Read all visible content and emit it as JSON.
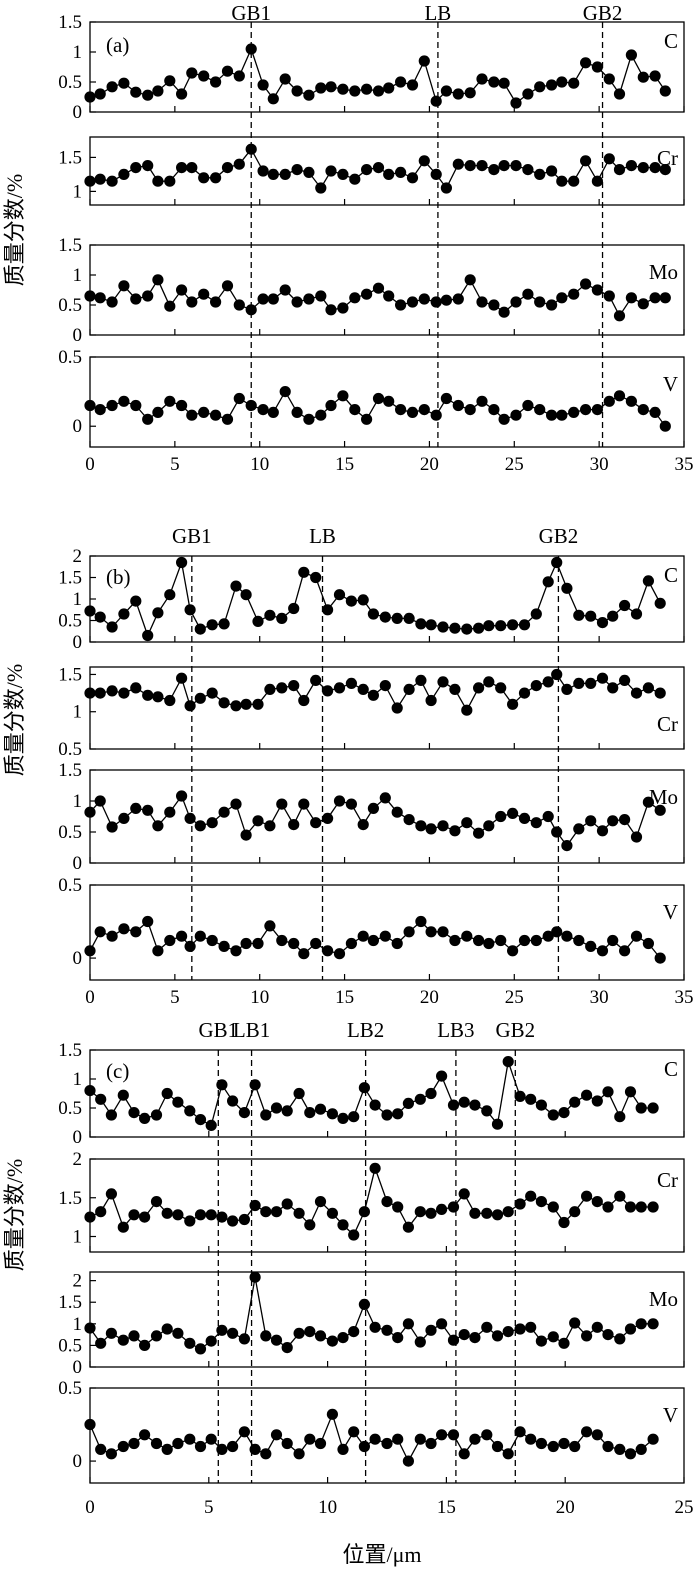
{
  "figure": {
    "ylabel": "质量分数/%",
    "xlabel": "位置/μm"
  },
  "chart_data": [
    {
      "type": "line",
      "panel": "(a)",
      "xlim": [
        0,
        35
      ],
      "xticks": [
        0,
        5,
        10,
        15,
        20,
        25,
        30,
        35
      ],
      "boundaries": [
        {
          "label": "GB1",
          "x": 9.5
        },
        {
          "label": "LB",
          "x": 20.5
        },
        {
          "label": "GB2",
          "x": 30.2
        }
      ],
      "x": [
        0,
        0.6,
        1.3,
        2,
        2.7,
        3.4,
        4,
        4.7,
        5.4,
        6,
        6.7,
        7.4,
        8.1,
        8.8,
        9.5,
        10.2,
        10.8,
        11.5,
        12.2,
        12.9,
        13.6,
        14.2,
        14.9,
        15.6,
        16.3,
        17,
        17.6,
        18.3,
        19,
        19.7,
        20.4,
        21,
        21.7,
        22.4,
        23.1,
        23.8,
        24.4,
        25.1,
        25.8,
        26.5,
        27.2,
        27.8,
        28.5,
        29.2,
        29.9,
        30.6,
        31.2,
        31.9,
        32.6,
        33.3,
        33.9
      ],
      "series": [
        {
          "name": "C",
          "ylim": [
            0,
            1.5
          ],
          "yticks": [
            0,
            0.5,
            1.0,
            1.5
          ],
          "values": [
            0.25,
            0.3,
            0.42,
            0.48,
            0.33,
            0.28,
            0.35,
            0.52,
            0.3,
            0.65,
            0.6,
            0.5,
            0.68,
            0.6,
            1.05,
            0.45,
            0.22,
            0.55,
            0.35,
            0.28,
            0.4,
            0.42,
            0.38,
            0.35,
            0.38,
            0.35,
            0.4,
            0.5,
            0.45,
            0.85,
            0.18,
            0.35,
            0.3,
            0.32,
            0.55,
            0.5,
            0.48,
            0.15,
            0.3,
            0.42,
            0.45,
            0.5,
            0.48,
            0.82,
            0.75,
            0.55,
            0.3,
            0.95,
            0.58,
            0.6,
            0.35
          ]
        },
        {
          "name": "Cr",
          "ylim": [
            0.8,
            1.8
          ],
          "yticks": [
            1.0,
            1.5
          ],
          "values": [
            1.15,
            1.18,
            1.15,
            1.25,
            1.35,
            1.38,
            1.15,
            1.15,
            1.35,
            1.35,
            1.2,
            1.2,
            1.35,
            1.4,
            1.62,
            1.3,
            1.25,
            1.25,
            1.32,
            1.28,
            1.05,
            1.3,
            1.25,
            1.18,
            1.32,
            1.35,
            1.25,
            1.28,
            1.2,
            1.45,
            1.25,
            1.05,
            1.4,
            1.38,
            1.38,
            1.32,
            1.38,
            1.38,
            1.32,
            1.25,
            1.3,
            1.15,
            1.15,
            1.45,
            1.15,
            1.48,
            1.32,
            1.38,
            1.35,
            1.35,
            1.32
          ]
        },
        {
          "name": "Mo",
          "ylim": [
            0,
            1.5
          ],
          "yticks": [
            0,
            0.5,
            1.0,
            1.5
          ],
          "values": [
            0.65,
            0.62,
            0.55,
            0.82,
            0.6,
            0.65,
            0.92,
            0.48,
            0.75,
            0.55,
            0.68,
            0.55,
            0.82,
            0.5,
            0.42,
            0.6,
            0.6,
            0.75,
            0.55,
            0.6,
            0.65,
            0.42,
            0.45,
            0.62,
            0.68,
            0.78,
            0.65,
            0.5,
            0.55,
            0.6,
            0.55,
            0.58,
            0.6,
            0.92,
            0.55,
            0.5,
            0.38,
            0.55,
            0.68,
            0.55,
            0.5,
            0.62,
            0.68,
            0.85,
            0.75,
            0.65,
            0.32,
            0.62,
            0.52,
            0.62,
            0.62
          ]
        },
        {
          "name": "V",
          "ylim": [
            -0.15,
            0.5
          ],
          "yticks": [
            0.0,
            0.5
          ],
          "values": [
            0.15,
            0.12,
            0.15,
            0.18,
            0.15,
            0.05,
            0.1,
            0.18,
            0.15,
            0.08,
            0.1,
            0.08,
            0.05,
            0.2,
            0.15,
            0.12,
            0.1,
            0.25,
            0.1,
            0.05,
            0.08,
            0.15,
            0.22,
            0.12,
            0.05,
            0.2,
            0.18,
            0.12,
            0.1,
            0.12,
            0.08,
            0.2,
            0.15,
            0.12,
            0.18,
            0.12,
            0.05,
            0.08,
            0.15,
            0.12,
            0.08,
            0.08,
            0.1,
            0.12,
            0.12,
            0.18,
            0.22,
            0.18,
            0.12,
            0.1,
            0.0
          ]
        }
      ]
    },
    {
      "type": "line",
      "panel": "(b)",
      "xlim": [
        0,
        35
      ],
      "xticks": [
        0,
        5,
        10,
        15,
        20,
        25,
        30,
        35
      ],
      "boundaries": [
        {
          "label": "GB1",
          "x": 6.0
        },
        {
          "label": "LB",
          "x": 13.7
        },
        {
          "label": "GB2",
          "x": 27.6
        }
      ],
      "x": [
        0,
        0.6,
        1.3,
        2,
        2.7,
        3.4,
        4,
        4.7,
        5.4,
        5.9,
        6.5,
        7.2,
        7.9,
        8.6,
        9.2,
        9.9,
        10.6,
        11.3,
        12,
        12.6,
        13.3,
        14,
        14.7,
        15.4,
        16.1,
        16.7,
        17.4,
        18.1,
        18.8,
        19.5,
        20.1,
        20.8,
        21.5,
        22.2,
        22.9,
        23.5,
        24.2,
        24.9,
        25.6,
        26.3,
        27,
        27.5,
        28.1,
        28.8,
        29.5,
        30.2,
        30.8,
        31.5,
        32.2,
        32.9,
        33.6
      ],
      "series": [
        {
          "name": "C",
          "ylim": [
            0,
            2.0
          ],
          "yticks": [
            0,
            0.5,
            1.0,
            1.5,
            2.0
          ],
          "values": [
            0.72,
            0.58,
            0.35,
            0.65,
            0.95,
            0.15,
            0.68,
            1.1,
            1.85,
            0.75,
            0.3,
            0.4,
            0.42,
            1.3,
            1.1,
            0.48,
            0.62,
            0.55,
            0.78,
            1.62,
            1.5,
            0.75,
            1.1,
            0.95,
            0.98,
            0.65,
            0.58,
            0.55,
            0.55,
            0.42,
            0.4,
            0.35,
            0.32,
            0.3,
            0.32,
            0.38,
            0.38,
            0.4,
            0.4,
            0.65,
            1.4,
            1.85,
            1.25,
            0.62,
            0.6,
            0.45,
            0.6,
            0.85,
            0.65,
            1.42,
            0.9
          ]
        },
        {
          "name": "Cr",
          "ylim": [
            0.5,
            1.6
          ],
          "yticks": [
            0.5,
            1.0,
            1.5
          ],
          "values": [
            1.25,
            1.25,
            1.28,
            1.25,
            1.32,
            1.22,
            1.2,
            1.15,
            1.45,
            1.08,
            1.18,
            1.25,
            1.12,
            1.08,
            1.1,
            1.1,
            1.3,
            1.32,
            1.35,
            1.15,
            1.42,
            1.28,
            1.32,
            1.38,
            1.3,
            1.22,
            1.35,
            1.05,
            1.3,
            1.42,
            1.15,
            1.4,
            1.3,
            1.02,
            1.32,
            1.4,
            1.32,
            1.1,
            1.25,
            1.35,
            1.4,
            1.5,
            1.3,
            1.38,
            1.38,
            1.45,
            1.32,
            1.42,
            1.25,
            1.32,
            1.25
          ]
        },
        {
          "name": "Mo",
          "ylim": [
            0,
            1.5
          ],
          "yticks": [
            0,
            0.5,
            1.0,
            1.5
          ],
          "values": [
            0.82,
            1.0,
            0.58,
            0.72,
            0.88,
            0.85,
            0.6,
            0.82,
            1.08,
            0.72,
            0.6,
            0.65,
            0.82,
            0.95,
            0.45,
            0.68,
            0.6,
            0.95,
            0.62,
            0.95,
            0.65,
            0.72,
            1.0,
            0.95,
            0.62,
            0.88,
            1.05,
            0.82,
            0.7,
            0.6,
            0.55,
            0.6,
            0.52,
            0.65,
            0.48,
            0.6,
            0.75,
            0.8,
            0.72,
            0.65,
            0.75,
            0.5,
            0.28,
            0.55,
            0.68,
            0.52,
            0.68,
            0.7,
            0.42,
            0.98,
            0.85
          ]
        },
        {
          "name": "V",
          "ylim": [
            -0.15,
            0.5
          ],
          "yticks": [
            0.0,
            0.5
          ],
          "values": [
            0.05,
            0.18,
            0.15,
            0.2,
            0.18,
            0.25,
            0.05,
            0.12,
            0.15,
            0.08,
            0.15,
            0.12,
            0.08,
            0.05,
            0.1,
            0.1,
            0.22,
            0.12,
            0.1,
            0.03,
            0.1,
            0.05,
            0.03,
            0.1,
            0.15,
            0.12,
            0.15,
            0.1,
            0.18,
            0.25,
            0.18,
            0.18,
            0.12,
            0.15,
            0.12,
            0.1,
            0.12,
            0.05,
            0.12,
            0.12,
            0.15,
            0.18,
            0.15,
            0.12,
            0.08,
            0.05,
            0.12,
            0.05,
            0.15,
            0.1,
            0.0
          ]
        }
      ]
    },
    {
      "type": "line",
      "panel": "(c)",
      "xlim": [
        0,
        25
      ],
      "xticks": [
        0,
        5,
        10,
        15,
        20,
        25
      ],
      "boundaries": [
        {
          "label": "GB1",
          "x": 5.4
        },
        {
          "label": "LB1",
          "x": 6.8
        },
        {
          "label": "LB2",
          "x": 11.6
        },
        {
          "label": "LB3",
          "x": 15.4
        },
        {
          "label": "GB2",
          "x": 17.9
        }
      ],
      "x": [
        0,
        0.45,
        0.9,
        1.4,
        1.85,
        2.3,
        2.8,
        3.25,
        3.7,
        4.2,
        4.65,
        5.1,
        5.55,
        6,
        6.5,
        6.95,
        7.4,
        7.85,
        8.3,
        8.8,
        9.25,
        9.7,
        10.2,
        10.65,
        11.1,
        11.55,
        12,
        12.5,
        12.95,
        13.4,
        13.9,
        14.35,
        14.8,
        15.3,
        15.75,
        16.2,
        16.7,
        17.15,
        17.6,
        18.1,
        18.55,
        19,
        19.5,
        19.95,
        20.4,
        20.9,
        21.35,
        21.8,
        22.3,
        22.75,
        23.2,
        23.7
      ],
      "series": [
        {
          "name": "C",
          "ylim": [
            0,
            1.5
          ],
          "yticks": [
            0,
            0.5,
            1.0,
            1.5
          ],
          "values": [
            0.8,
            0.65,
            0.38,
            0.72,
            0.42,
            0.32,
            0.38,
            0.75,
            0.6,
            0.45,
            0.3,
            0.2,
            0.9,
            0.62,
            0.42,
            0.9,
            0.38,
            0.5,
            0.45,
            0.75,
            0.42,
            0.48,
            0.4,
            0.32,
            0.35,
            0.85,
            0.55,
            0.38,
            0.4,
            0.58,
            0.65,
            0.75,
            1.05,
            0.55,
            0.6,
            0.55,
            0.45,
            0.22,
            1.3,
            0.7,
            0.65,
            0.55,
            0.38,
            0.42,
            0.6,
            0.72,
            0.62,
            0.78,
            0.35,
            0.78,
            0.5,
            0.5
          ]
        },
        {
          "name": "Cr",
          "ylim": [
            0.8,
            2.0
          ],
          "yticks": [
            1.0,
            1.5,
            2.0
          ],
          "values": [
            1.25,
            1.32,
            1.55,
            1.12,
            1.28,
            1.25,
            1.45,
            1.3,
            1.28,
            1.2,
            1.28,
            1.28,
            1.25,
            1.2,
            1.22,
            1.4,
            1.32,
            1.32,
            1.42,
            1.3,
            1.15,
            1.45,
            1.3,
            1.15,
            1.02,
            1.32,
            1.88,
            1.45,
            1.38,
            1.12,
            1.32,
            1.3,
            1.35,
            1.38,
            1.55,
            1.3,
            1.3,
            1.28,
            1.32,
            1.42,
            1.52,
            1.45,
            1.38,
            1.18,
            1.32,
            1.52,
            1.45,
            1.38,
            1.52,
            1.38,
            1.38,
            1.38
          ]
        },
        {
          "name": "Mo",
          "ylim": [
            0,
            2.2
          ],
          "yticks": [
            0,
            0.5,
            1.0,
            1.5,
            2.0
          ],
          "values": [
            0.9,
            0.55,
            0.78,
            0.62,
            0.72,
            0.5,
            0.72,
            0.88,
            0.78,
            0.55,
            0.42,
            0.6,
            0.85,
            0.78,
            0.65,
            2.08,
            0.72,
            0.62,
            0.45,
            0.78,
            0.82,
            0.72,
            0.6,
            0.68,
            0.82,
            1.45,
            0.92,
            0.85,
            0.68,
            1.0,
            0.58,
            0.85,
            1.0,
            0.62,
            0.75,
            0.68,
            0.92,
            0.72,
            0.82,
            0.88,
            0.92,
            0.6,
            0.7,
            0.55,
            1.02,
            0.72,
            0.92,
            0.75,
            0.65,
            0.88,
            1.0,
            1.0
          ]
        },
        {
          "name": "V",
          "ylim": [
            -0.15,
            0.5
          ],
          "yticks": [
            0.0,
            0.5
          ],
          "values": [
            0.25,
            0.08,
            0.05,
            0.1,
            0.12,
            0.18,
            0.12,
            0.08,
            0.12,
            0.15,
            0.1,
            0.15,
            0.08,
            0.1,
            0.2,
            0.08,
            0.05,
            0.18,
            0.12,
            0.05,
            0.15,
            0.12,
            0.32,
            0.08,
            0.2,
            0.1,
            0.15,
            0.12,
            0.15,
            0.0,
            0.15,
            0.12,
            0.18,
            0.18,
            0.05,
            0.15,
            0.18,
            0.1,
            0.05,
            0.2,
            0.15,
            0.12,
            0.1,
            0.12,
            0.1,
            0.2,
            0.18,
            0.1,
            0.08,
            0.05,
            0.08,
            0.15
          ]
        }
      ]
    }
  ]
}
